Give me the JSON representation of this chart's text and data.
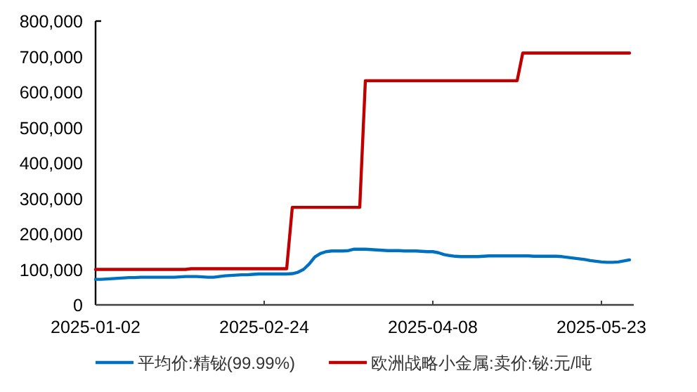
{
  "chart_data": {
    "type": "line",
    "categories": [
      "2025-01-02",
      null,
      null,
      null,
      null,
      null,
      null,
      null,
      null,
      null,
      null,
      null,
      null,
      null,
      null,
      null,
      null,
      null,
      null,
      null,
      null,
      null,
      null,
      null,
      null,
      null,
      null,
      null,
      null,
      null,
      "2025-02-24",
      null,
      null,
      null,
      null,
      null,
      null,
      null,
      null,
      null,
      null,
      null,
      null,
      null,
      null,
      null,
      null,
      null,
      null,
      null,
      null,
      null,
      null,
      null,
      null,
      null,
      null,
      null,
      null,
      null,
      "2025-04-08",
      null,
      null,
      null,
      null,
      null,
      null,
      null,
      null,
      null,
      null,
      null,
      null,
      null,
      null,
      null,
      null,
      null,
      null,
      null,
      null,
      null,
      null,
      null,
      null,
      null,
      null,
      null,
      null,
      null,
      "2025-05-23",
      null,
      null,
      null,
      null,
      null
    ],
    "series": [
      {
        "name": "平均价:精铋(99.99%)",
        "color": "#0070c0",
        "values": [
          72000,
          72000,
          73000,
          74000,
          75000,
          76000,
          77000,
          77000,
          78000,
          78000,
          78000,
          78000,
          78000,
          78000,
          78000,
          79000,
          80000,
          80000,
          80000,
          79000,
          78000,
          78000,
          80000,
          82000,
          83000,
          84000,
          85000,
          85000,
          86000,
          87000,
          87000,
          87000,
          87000,
          87000,
          87000,
          88000,
          92000,
          100000,
          115000,
          135000,
          145000,
          150000,
          152000,
          152000,
          152000,
          153000,
          157000,
          157000,
          157000,
          156000,
          155000,
          154000,
          153000,
          153000,
          153000,
          152000,
          152000,
          152000,
          151000,
          150000,
          150000,
          147000,
          142000,
          139000,
          137000,
          136000,
          136000,
          136000,
          136000,
          137000,
          138000,
          138000,
          138000,
          138000,
          138000,
          138000,
          138000,
          138000,
          137000,
          137000,
          137000,
          137000,
          137000,
          136000,
          134000,
          132000,
          130000,
          128000,
          125000,
          123000,
          121000,
          120000,
          120000,
          121000,
          124000,
          127000
        ]
      },
      {
        "name": "欧洲战略小金属:卖价:铋:元/吨",
        "color": "#c00000",
        "values": [
          100000,
          100000,
          100000,
          100000,
          100000,
          100000,
          100000,
          100000,
          100000,
          100000,
          100000,
          100000,
          100000,
          100000,
          100000,
          100000,
          100000,
          102000,
          102000,
          102000,
          102000,
          102000,
          102000,
          102000,
          102000,
          102000,
          102000,
          102000,
          102000,
          102000,
          102000,
          102000,
          102000,
          102000,
          102000,
          275000,
          275000,
          275000,
          275000,
          275000,
          275000,
          275000,
          275000,
          275000,
          275000,
          275000,
          275000,
          275000,
          632000,
          632000,
          632000,
          632000,
          632000,
          632000,
          632000,
          632000,
          632000,
          632000,
          632000,
          632000,
          632000,
          632000,
          632000,
          632000,
          632000,
          632000,
          632000,
          632000,
          632000,
          632000,
          632000,
          632000,
          632000,
          632000,
          632000,
          632000,
          710000,
          710000,
          710000,
          710000,
          710000,
          710000,
          710000,
          710000,
          710000,
          710000,
          710000,
          710000,
          710000,
          710000,
          710000,
          710000,
          710000,
          710000,
          710000,
          710000
        ]
      }
    ],
    "ylim": [
      0,
      800000
    ],
    "yticks": [
      0,
      {
        "value": 100000,
        "label": "100,000"
      },
      {
        "value": 200000,
        "label": "200,000"
      },
      {
        "value": 300000,
        "label": "300,000"
      },
      {
        "value": 400000,
        "label": "400,000"
      },
      {
        "value": 500000,
        "label": "500,000"
      },
      {
        "value": 600000,
        "label": "600,000"
      },
      {
        "value": 700000,
        "label": "700,000"
      },
      {
        "value": 800000,
        "label": "800,000"
      }
    ],
    "grid": false,
    "legend": "bottom",
    "marker": "none",
    "line_style": "solid"
  }
}
